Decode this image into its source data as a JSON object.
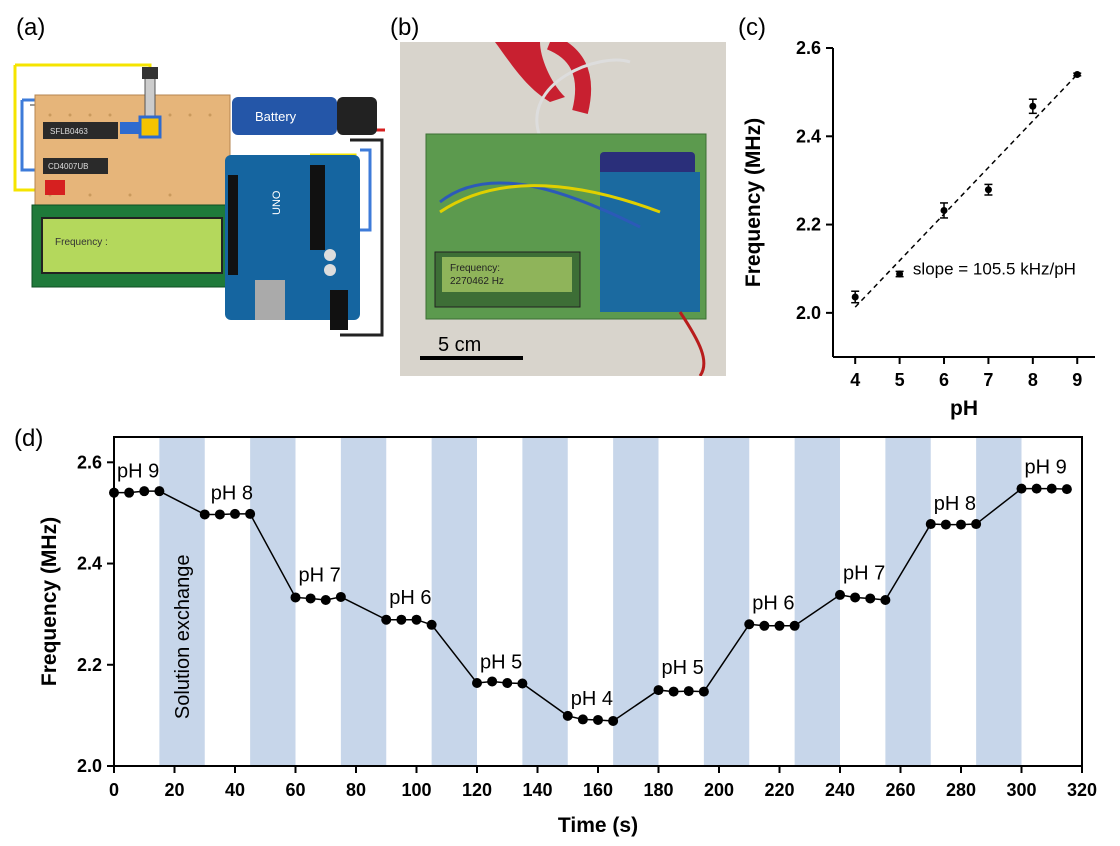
{
  "panels": {
    "a": "(a)",
    "b": "(b)",
    "c": "(c)",
    "d": "(d)"
  },
  "panel_a": {
    "battery_label": "Battery",
    "lcd_text": "Frequency :",
    "chip1": "SFLB0463",
    "chip2": "CD4007UB",
    "arduino": "UNO"
  },
  "panel_b": {
    "lcd_line1": "Frequency:",
    "lcd_line2": "2270462 Hz",
    "scale_label": "5 cm"
  },
  "colors": {
    "series": "#000000",
    "band": "#c7d6ea",
    "fit_line": "#000000"
  },
  "chart_data": [
    {
      "type": "scatter",
      "xlabel": "pH",
      "ylabel": "Frequency (MHz)",
      "xlim": [
        3.5,
        9.4
      ],
      "ylim": [
        1.9,
        2.6
      ],
      "xticks": [
        4,
        5,
        6,
        7,
        8,
        9
      ],
      "yticks": [
        2.0,
        2.2,
        2.4,
        2.6
      ],
      "ytick_labels": [
        "2.0",
        "2.2",
        "2.4",
        "2.6"
      ],
      "points": [
        {
          "x": 4,
          "y": 2.036,
          "err": 0.013
        },
        {
          "x": 5,
          "y": 2.088,
          "err": 0.006
        },
        {
          "x": 6,
          "y": 2.232,
          "err": 0.017
        },
        {
          "x": 7,
          "y": 2.279,
          "err": 0.012
        },
        {
          "x": 8,
          "y": 2.468,
          "err": 0.016
        },
        {
          "x": 9,
          "y": 2.54,
          "err": 0.003
        }
      ],
      "fit": {
        "x": [
          4,
          9
        ],
        "y": [
          2.013,
          2.54
        ]
      },
      "annotation": "slope = 105.5 kHz/pH",
      "grid": false
    },
    {
      "type": "line",
      "xlabel": "Time (s)",
      "ylabel": "Frequency (MHz)",
      "xlim": [
        0,
        320
      ],
      "ylim": [
        2.0,
        2.65
      ],
      "xticks": [
        0,
        20,
        40,
        60,
        80,
        100,
        120,
        140,
        160,
        180,
        200,
        220,
        240,
        260,
        280,
        300,
        320
      ],
      "yticks": [
        2.0,
        2.2,
        2.4,
        2.6
      ],
      "ytick_labels": [
        "2.0",
        "2.2",
        "2.4",
        "2.6"
      ],
      "bands": [
        [
          15,
          30
        ],
        [
          45,
          60
        ],
        [
          75,
          90
        ],
        [
          105,
          120
        ],
        [
          135,
          150
        ],
        [
          165,
          180
        ],
        [
          195,
          210
        ],
        [
          225,
          240
        ],
        [
          255,
          270
        ],
        [
          285,
          300
        ]
      ],
      "band_annotation": "Solution exchange",
      "x": [
        0,
        5,
        10,
        15,
        30,
        35,
        40,
        45,
        60,
        65,
        70,
        75,
        90,
        95,
        100,
        105,
        120,
        125,
        130,
        135,
        150,
        155,
        160,
        165,
        180,
        185,
        190,
        195,
        210,
        215,
        220,
        225,
        240,
        245,
        250,
        255,
        270,
        275,
        280,
        285,
        300,
        305,
        310,
        315
      ],
      "y": [
        2.54,
        2.54,
        2.543,
        2.543,
        2.497,
        2.497,
        2.498,
        2.498,
        2.333,
        2.331,
        2.328,
        2.334,
        2.289,
        2.289,
        2.289,
        2.279,
        2.164,
        2.167,
        2.164,
        2.163,
        2.099,
        2.092,
        2.091,
        2.089,
        2.15,
        2.147,
        2.148,
        2.147,
        2.28,
        2.277,
        2.277,
        2.277,
        2.338,
        2.333,
        2.331,
        2.328,
        2.478,
        2.477,
        2.477,
        2.478,
        2.548,
        2.548,
        2.548,
        2.547
      ],
      "labels": [
        {
          "text": "pH 9",
          "x": 1,
          "y": 2.57
        },
        {
          "text": "pH 8",
          "x": 32,
          "y": 2.527
        },
        {
          "text": "pH 7",
          "x": 61,
          "y": 2.365
        },
        {
          "text": "pH 6",
          "x": 91,
          "y": 2.32
        },
        {
          "text": "pH 5",
          "x": 121,
          "y": 2.193
        },
        {
          "text": "pH 4",
          "x": 151,
          "y": 2.121
        },
        {
          "text": "pH 5",
          "x": 181,
          "y": 2.182
        },
        {
          "text": "pH 6",
          "x": 211,
          "y": 2.309
        },
        {
          "text": "pH 7",
          "x": 241,
          "y": 2.368
        },
        {
          "text": "pH 8",
          "x": 271,
          "y": 2.506
        },
        {
          "text": "pH 9",
          "x": 301,
          "y": 2.578
        }
      ],
      "grid": false
    }
  ]
}
